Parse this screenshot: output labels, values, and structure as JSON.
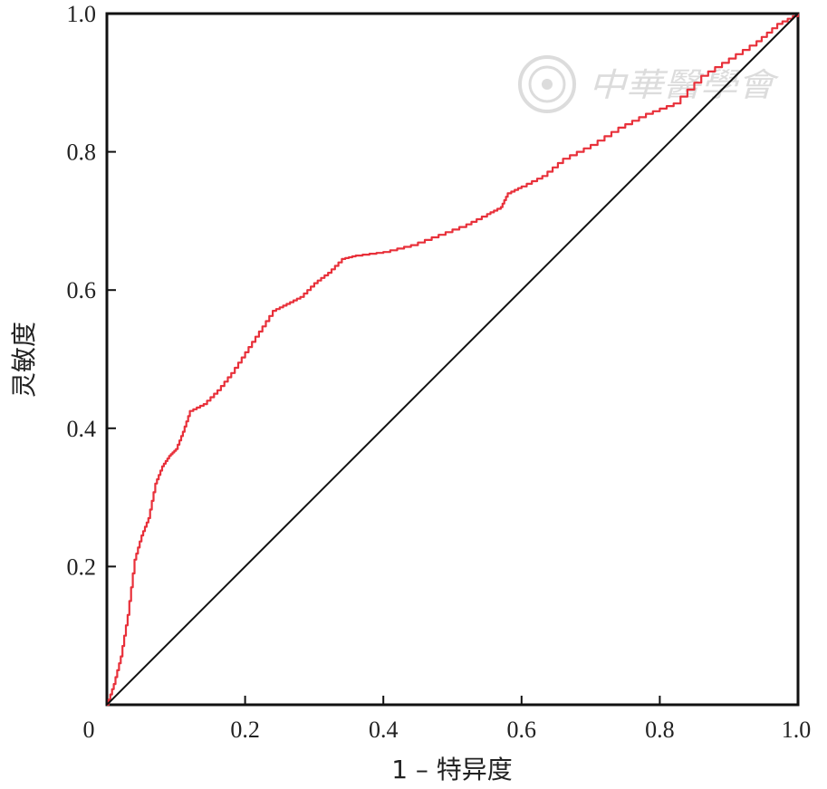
{
  "chart_data": {
    "type": "line",
    "title": "",
    "xlabel": "1 – 特异度",
    "ylabel": "灵敏度",
    "xlim": [
      0,
      1
    ],
    "ylim": [
      0,
      1
    ],
    "x_ticks": [
      "0",
      "0.2",
      "0.4",
      "0.6",
      "0.8",
      "1.0"
    ],
    "y_ticks": [
      "0.2",
      "0.4",
      "0.6",
      "0.8",
      "1.0"
    ],
    "grid": false,
    "legend": "none",
    "series": [
      {
        "color": "#e8303a",
        "points": [
          [
            0,
            0
          ],
          [
            0.01,
            0.03
          ],
          [
            0.02,
            0.07
          ],
          [
            0.03,
            0.13
          ],
          [
            0.04,
            0.21
          ],
          [
            0.05,
            0.245
          ],
          [
            0.06,
            0.27
          ],
          [
            0.07,
            0.32
          ],
          [
            0.08,
            0.345
          ],
          [
            0.09,
            0.36
          ],
          [
            0.1,
            0.37
          ],
          [
            0.11,
            0.395
          ],
          [
            0.12,
            0.425
          ],
          [
            0.14,
            0.435
          ],
          [
            0.16,
            0.455
          ],
          [
            0.18,
            0.48
          ],
          [
            0.2,
            0.51
          ],
          [
            0.22,
            0.54
          ],
          [
            0.24,
            0.57
          ],
          [
            0.26,
            0.58
          ],
          [
            0.28,
            0.59
          ],
          [
            0.3,
            0.61
          ],
          [
            0.32,
            0.625
          ],
          [
            0.34,
            0.645
          ],
          [
            0.36,
            0.65
          ],
          [
            0.4,
            0.655
          ],
          [
            0.44,
            0.665
          ],
          [
            0.48,
            0.68
          ],
          [
            0.52,
            0.695
          ],
          [
            0.55,
            0.71
          ],
          [
            0.57,
            0.72
          ],
          [
            0.58,
            0.74
          ],
          [
            0.6,
            0.75
          ],
          [
            0.63,
            0.765
          ],
          [
            0.66,
            0.79
          ],
          [
            0.7,
            0.81
          ],
          [
            0.74,
            0.835
          ],
          [
            0.78,
            0.855
          ],
          [
            0.82,
            0.87
          ],
          [
            0.86,
            0.91
          ],
          [
            0.9,
            0.935
          ],
          [
            0.94,
            0.96
          ],
          [
            0.97,
            0.985
          ],
          [
            1.0,
            1.0
          ]
        ]
      },
      {
        "color": "#111111",
        "points": [
          [
            0,
            0
          ],
          [
            1,
            1
          ]
        ]
      }
    ]
  },
  "watermark": {
    "text": "中華醫學會",
    "color": "#dcdcdc"
  }
}
